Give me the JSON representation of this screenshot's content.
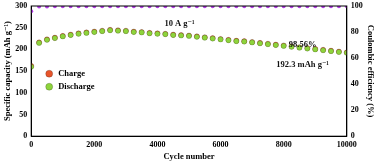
{
  "chart_data": {
    "type": "scatter",
    "x_label": "Cycle number",
    "y_label": "Specific capacity (mAh g⁻¹)",
    "y2_label": "Coulombic efficiency (%)",
    "annotations": [
      "10 A g⁻¹",
      "98.56%",
      "192.3 mAh g⁻¹"
    ],
    "x": [
      0,
      250,
      500,
      750,
      1000,
      1250,
      1500,
      1750,
      2000,
      2250,
      2500,
      2750,
      3000,
      3250,
      3500,
      3750,
      4000,
      4250,
      4500,
      4750,
      5000,
      5250,
      5500,
      5750,
      6000,
      6250,
      6500,
      6750,
      7000,
      7250,
      7500,
      7750,
      8000,
      8250,
      8500,
      8750,
      9000,
      9250,
      9500,
      9750,
      10000
    ],
    "series": [
      {
        "name": "Charge",
        "color": "#e8552b",
        "marker": "circle",
        "values": [
          162,
          216,
          223,
          227,
          231,
          234,
          237,
          239,
          241,
          243,
          245,
          244,
          243,
          241,
          240,
          238,
          237,
          236,
          234,
          233,
          232,
          230,
          228,
          226,
          224,
          222,
          220,
          219,
          217,
          215,
          213,
          211,
          209,
          207,
          205,
          203,
          201,
          199,
          197,
          195,
          193
        ]
      },
      {
        "name": "Discharge",
        "color": "#8ed43c",
        "marker": "circle",
        "values": [
          160,
          215,
          222,
          226,
          230,
          233,
          236,
          238,
          240,
          242,
          244,
          243,
          242,
          240,
          239,
          237,
          236,
          235,
          233,
          232,
          231,
          229,
          227,
          225,
          223,
          221,
          219,
          218,
          216,
          214,
          212,
          210,
          208,
          206,
          204,
          202,
          200,
          198,
          196,
          194,
          192.3
        ]
      },
      {
        "color": "#b23fe6",
        "marker": "circle",
        "axis": "y2",
        "values": [
          96,
          99.6,
          99.7,
          99.8,
          99.8,
          99.8,
          99.9,
          99.9,
          99.9,
          99.9,
          99.9,
          99.9,
          99.9,
          99.9,
          99.9,
          99.9,
          99.9,
          99.9,
          99.9,
          99.9,
          99.9,
          99.9,
          99.9,
          99.9,
          99.9,
          99.9,
          99.9,
          99.9,
          99.9,
          99.9,
          99.9,
          99.9,
          99.9,
          99.9,
          99.9,
          99.9,
          99.9,
          99.9,
          99.9,
          99.9,
          99.9
        ]
      }
    ],
    "xlim": [
      0,
      10000
    ],
    "xticks": [
      0,
      2000,
      4000,
      6000,
      8000,
      10000
    ],
    "ylim": [
      0,
      300
    ],
    "yticks": [
      0,
      50,
      100,
      150,
      200,
      250,
      300
    ],
    "y2lim": [
      0,
      100
    ],
    "y2ticks": [
      0,
      20,
      40,
      60,
      80,
      100
    ],
    "grid": false,
    "legend": "left"
  }
}
